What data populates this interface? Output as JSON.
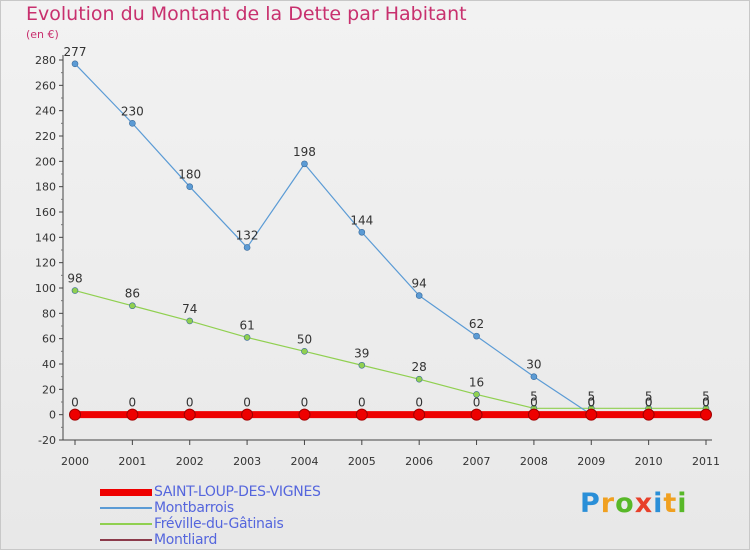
{
  "title": "Evolution du Montant de la Dette par Habitant",
  "unit_label": "(en €)",
  "logo_text": "Proxiti",
  "chart_data": {
    "type": "line",
    "title": "Evolution du Montant de la Dette par Habitant",
    "ylabel": "(en €)",
    "xlabel": "",
    "x": [
      "2000",
      "2001",
      "2002",
      "2003",
      "2004",
      "2005",
      "2006",
      "2007",
      "2008",
      "2009",
      "2010",
      "2011"
    ],
    "ylim": [
      -20,
      280
    ],
    "yticks": [
      -20,
      0,
      20,
      40,
      60,
      80,
      100,
      120,
      140,
      160,
      180,
      200,
      220,
      240,
      260,
      280
    ],
    "grid": false,
    "legend_position": "bottom-left",
    "series": [
      {
        "name": "SAINT-LOUP-DES-VIGNES",
        "color": "#ee0000",
        "values": [
          0,
          0,
          0,
          0,
          0,
          0,
          0,
          0,
          0,
          0,
          0,
          0
        ],
        "labels": [
          "0",
          "0",
          "0",
          "0",
          "0",
          "0",
          "0",
          "0",
          "0",
          "0",
          "0",
          "0"
        ]
      },
      {
        "name": "Montbarrois",
        "color": "#5b9bd5",
        "values": [
          277,
          230,
          180,
          132,
          198,
          144,
          94,
          62,
          30,
          0,
          0,
          0
        ],
        "labels": [
          "277",
          "230",
          "180",
          "132",
          "198",
          "144",
          "94",
          "62",
          "30",
          "0",
          "0",
          "0"
        ]
      },
      {
        "name": "Fréville-du-Gâtinais",
        "color": "#90d050",
        "values": [
          98,
          86,
          74,
          61,
          50,
          39,
          28,
          16,
          5,
          5,
          5,
          5
        ],
        "labels": [
          "98",
          "86",
          "74",
          "61",
          "50",
          "39",
          "28",
          "16",
          "5",
          "5",
          "5",
          "5"
        ]
      },
      {
        "name": "Montliard",
        "color": "#8b3a4a",
        "values": [
          0,
          0,
          0,
          0,
          0,
          0,
          0,
          0,
          0,
          0,
          0,
          0
        ],
        "labels": [
          "",
          "",
          "",
          "",
          "",
          "",
          "",
          "",
          "",
          "",
          "",
          ""
        ]
      }
    ]
  }
}
